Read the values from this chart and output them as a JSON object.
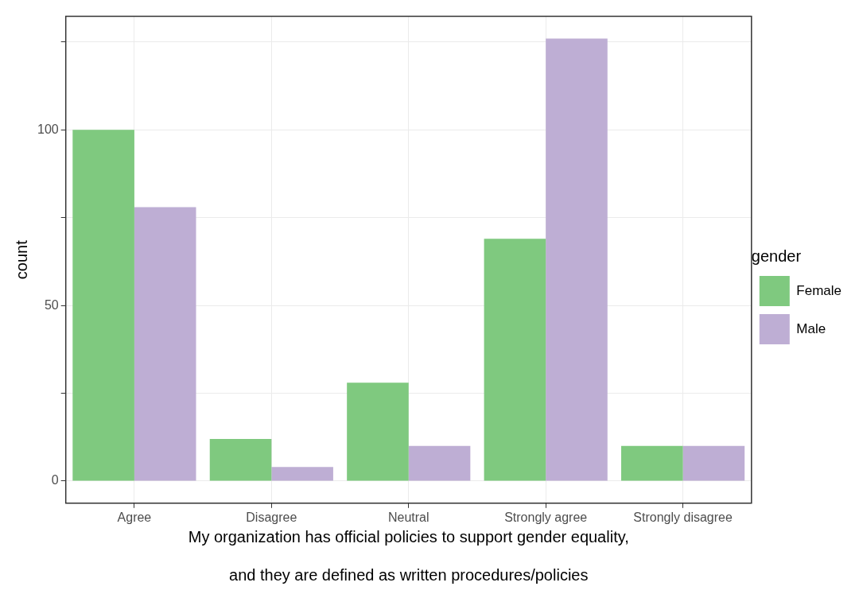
{
  "chart_data": {
    "type": "bar",
    "xlabel": "My organization has official policies to support gender equality,\n\nand they are defined as written procedures/policies",
    "ylabel": "count",
    "legend_title": "gender",
    "categories": [
      "Agree",
      "Disagree",
      "Neutral",
      "Strongly agree",
      "Strongly disagree"
    ],
    "series": [
      {
        "name": "Female",
        "color": "#7fc97f",
        "values": [
          100,
          12,
          28,
          69,
          10
        ]
      },
      {
        "name": "Male",
        "color": "#beaed4",
        "values": [
          78,
          4,
          10,
          126,
          10
        ]
      }
    ],
    "ylim": [
      -6.3,
      132.3
    ],
    "yticks": [
      0,
      {
        "value": 25,
        "label": null
      },
      50,
      {
        "value": 75,
        "label": null
      },
      100,
      {
        "value": 125,
        "label": null
      }
    ],
    "grid": true,
    "legend": "right"
  }
}
